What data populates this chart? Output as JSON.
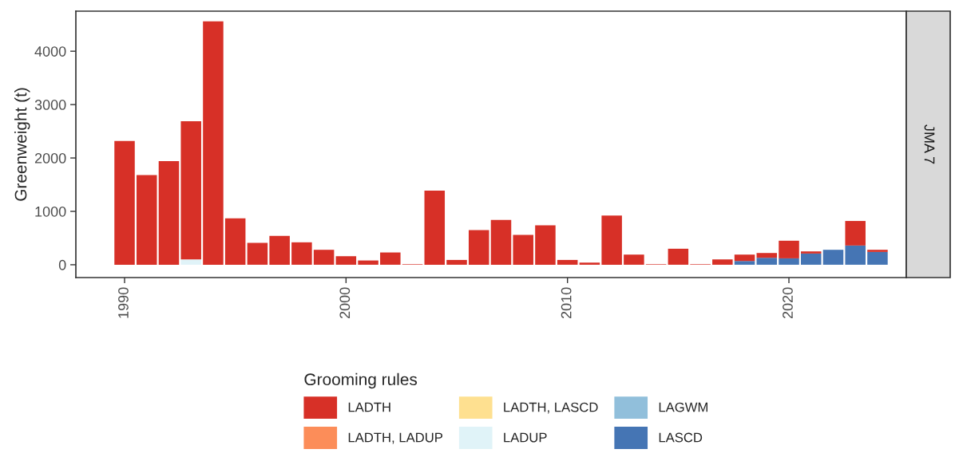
{
  "chart_data": {
    "type": "bar",
    "stacked": true,
    "ylabel": "Greenweight (t)",
    "legend_title": "Grooming rules",
    "legend": "bottom",
    "grid": false,
    "annotations": [
      "JMA 7"
    ],
    "x": [
      1990,
      1991,
      1992,
      1993,
      1994,
      1995,
      1996,
      1997,
      1998,
      1999,
      2000,
      2001,
      2002,
      2003,
      2004,
      2005,
      2006,
      2007,
      2008,
      2009,
      2010,
      2011,
      2012,
      2013,
      2014,
      2015,
      2016,
      2017,
      2018,
      2019,
      2020,
      2021,
      2022,
      2023,
      2024
    ],
    "xlim": [
      1987.8,
      2025.3
    ],
    "xticks": [
      1990,
      2000,
      2010,
      2020
    ],
    "ylim": [
      -240,
      4750
    ],
    "yticks": [
      0,
      1000,
      2000,
      3000,
      4000
    ],
    "series": [
      {
        "name": "LASCD",
        "color": "#4575b4",
        "values": [
          null,
          null,
          null,
          null,
          null,
          null,
          null,
          null,
          null,
          null,
          null,
          null,
          null,
          null,
          null,
          null,
          null,
          null,
          null,
          null,
          null,
          null,
          null,
          null,
          null,
          null,
          null,
          null,
          70,
          130,
          120,
          210,
          280,
          360,
          240
        ]
      },
      {
        "name": "LAGWM",
        "color": "#91bfdb",
        "values": [
          null,
          null,
          null,
          null,
          null,
          null,
          null,
          null,
          null,
          null,
          null,
          null,
          null,
          null,
          null,
          null,
          null,
          null,
          null,
          null,
          null,
          null,
          null,
          null,
          null,
          null,
          null,
          null,
          null,
          null,
          null,
          null,
          null,
          null,
          null
        ]
      },
      {
        "name": "LADUP",
        "color": "#e0f3f8",
        "values": [
          null,
          null,
          null,
          100,
          null,
          null,
          null,
          null,
          null,
          null,
          null,
          null,
          null,
          null,
          null,
          null,
          null,
          null,
          null,
          null,
          null,
          null,
          null,
          null,
          null,
          null,
          null,
          null,
          null,
          null,
          null,
          null,
          null,
          null,
          null
        ]
      },
      {
        "name": "LADTH, LASCD",
        "color": "#fee090",
        "values": [
          null,
          null,
          null,
          null,
          null,
          null,
          null,
          null,
          null,
          null,
          null,
          null,
          null,
          null,
          null,
          null,
          null,
          null,
          null,
          null,
          null,
          null,
          null,
          null,
          null,
          null,
          null,
          null,
          null,
          null,
          null,
          null,
          null,
          null,
          null
        ]
      },
      {
        "name": "LADTH, LADUP",
        "color": "#fc8d59",
        "values": [
          null,
          null,
          null,
          null,
          null,
          null,
          null,
          null,
          null,
          null,
          null,
          null,
          null,
          null,
          null,
          null,
          null,
          null,
          null,
          null,
          null,
          null,
          null,
          null,
          null,
          null,
          null,
          null,
          null,
          null,
          null,
          null,
          null,
          null,
          null
        ]
      },
      {
        "name": "LADTH",
        "color": "#d73027",
        "values": [
          2320,
          1680,
          1940,
          2590,
          4560,
          870,
          410,
          540,
          420,
          280,
          160,
          80,
          230,
          10,
          1390,
          90,
          650,
          840,
          560,
          740,
          90,
          40,
          920,
          190,
          10,
          300,
          10,
          100,
          120,
          90,
          330,
          40,
          null,
          460,
          40
        ]
      }
    ]
  }
}
